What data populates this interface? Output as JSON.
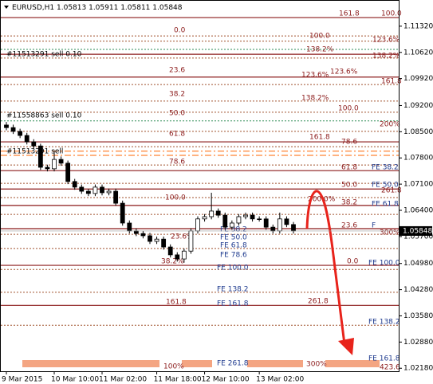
{
  "chart_data": {
    "type": "candlestick",
    "title": "EURUSD,H1",
    "header_ohlc": [
      "1.05813",
      "1.05911",
      "1.05811",
      "1.05848"
    ],
    "current_price": {
      "value": 1.05848,
      "label": "1.05848"
    },
    "x": [
      "9 Mar 2015",
      null,
      null,
      null,
      null,
      null,
      null,
      "10 Mar 10:00",
      null,
      null,
      null,
      null,
      null,
      null,
      "11 Mar 02:00",
      null,
      null,
      null,
      null,
      null,
      null,
      null,
      "11 Mar 18:00",
      null,
      null,
      null,
      null,
      null,
      null,
      "12 Mar 10:00",
      null,
      null,
      null,
      null,
      null,
      null,
      null,
      "13 Mar 02:00",
      null,
      null,
      null,
      null,
      null
    ],
    "open": [
      1.0868,
      1.0861,
      1.0851,
      1.084,
      1.0823,
      1.0812,
      1.0755,
      1.0751,
      1.0776,
      1.0766,
      1.0717,
      1.0702,
      1.0691,
      1.0685,
      1.0702,
      1.0687,
      1.0691,
      1.0659,
      1.0606,
      1.0585,
      1.0578,
      1.0572,
      1.0557,
      1.0563,
      1.0542,
      1.0521,
      1.051,
      1.0531,
      1.0585,
      1.0617,
      1.0623,
      1.0638,
      1.0627,
      1.0595,
      1.0606,
      1.0623,
      1.0627,
      1.0617,
      1.0617,
      1.0595,
      1.0585,
      1.0617,
      1.0602
    ],
    "high": [
      1.0876,
      1.0869,
      1.0858,
      1.0847,
      1.083,
      1.0818,
      1.0762,
      1.08,
      1.0784,
      1.0773,
      1.0724,
      1.0709,
      1.0697,
      1.0709,
      1.0709,
      1.0698,
      1.0698,
      1.0666,
      1.0613,
      1.0592,
      1.0585,
      1.058,
      1.057,
      1.057,
      1.0549,
      1.0528,
      1.0538,
      1.0592,
      1.0624,
      1.063,
      1.0687,
      1.0645,
      1.0634,
      1.0613,
      1.063,
      1.0634,
      1.0634,
      1.0624,
      1.0624,
      1.0602,
      1.0634,
      1.0624,
      1.0609
    ],
    "low": [
      1.0854,
      1.0844,
      1.0833,
      1.0816,
      1.0805,
      1.0748,
      1.0744,
      1.0744,
      1.0759,
      1.071,
      1.0695,
      1.0684,
      1.0678,
      1.0678,
      1.068,
      1.068,
      1.0652,
      1.0599,
      1.0578,
      1.0571,
      1.0565,
      1.055,
      1.055,
      1.0535,
      1.0514,
      1.0503,
      1.05,
      1.0524,
      1.0578,
      1.061,
      1.0616,
      1.062,
      1.0588,
      1.0588,
      1.0599,
      1.0616,
      1.061,
      1.061,
      1.0588,
      1.0578,
      1.0578,
      1.0595,
      1.0578
    ],
    "close": [
      1.0861,
      1.0851,
      1.084,
      1.0823,
      1.0812,
      1.0755,
      1.0751,
      1.0776,
      1.0766,
      1.0717,
      1.0702,
      1.0691,
      1.0685,
      1.0702,
      1.0687,
      1.0691,
      1.0659,
      1.0606,
      1.0585,
      1.0578,
      1.0572,
      1.0557,
      1.0563,
      1.0542,
      1.0521,
      1.051,
      1.0531,
      1.0585,
      1.0617,
      1.0623,
      1.0638,
      1.0627,
      1.0595,
      1.0606,
      1.0623,
      1.0627,
      1.0617,
      1.0617,
      1.0595,
      1.0585,
      1.0617,
      1.0602,
      1.0585
    ],
    "ylim": [
      1.021,
      1.1202
    ],
    "yticks": [
      {
        "value": 1.1132,
        "label": "1.11320"
      },
      {
        "value": 1.1062,
        "label": "1.10620"
      },
      {
        "value": 1.0992,
        "label": "1.09920"
      },
      {
        "value": 1.092,
        "label": "1.09200"
      },
      {
        "value": 1.085,
        "label": "1.08500"
      },
      {
        "value": 1.078,
        "label": "1.07800"
      },
      {
        "value": 1.071,
        "label": "1.07100"
      },
      {
        "value": 1.064,
        "label": "1.06400"
      },
      {
        "value": 1.057,
        "label": "1.05700"
      },
      {
        "value": 1.0498,
        "label": "1.04980"
      },
      {
        "value": 1.0428,
        "label": "1.04280"
      },
      {
        "value": 1.0358,
        "label": "1.03580"
      },
      {
        "value": 1.0288,
        "label": "1.02880"
      },
      {
        "value": 1.0218,
        "label": "1.02180"
      }
    ],
    "levels": [
      {
        "price": 1.1155,
        "color": "#8b1a1a",
        "dash": false
      },
      {
        "price": 1.1106,
        "color": "#a0522d",
        "dash": true
      },
      {
        "price": 1.1092,
        "color": "#a0522d",
        "dash": true
      },
      {
        "price": 1.107,
        "color": "#2e8b57",
        "dash": true
      },
      {
        "price": 1.1057,
        "color": "#8b1a1a",
        "dash": false
      },
      {
        "price": 1.1047,
        "color": "#a0522d",
        "dash": true
      },
      {
        "price": 1.0996,
        "color": "#8b1a1a",
        "dash": false
      },
      {
        "price": 1.0976,
        "color": "#a0522d",
        "dash": true
      },
      {
        "price": 1.0932,
        "color": "#a0522d",
        "dash": true
      },
      {
        "price": 1.0902,
        "color": "#a0522d",
        "dash": true
      },
      {
        "price": 1.0879,
        "color": "#2e8b57",
        "dash": true
      },
      {
        "price": 1.0851,
        "color": "#a0522d",
        "dash": true
      },
      {
        "price": 1.0823,
        "color": "#8b1a1a",
        "dash": false
      },
      {
        "price": 1.081,
        "color": "#a0522d",
        "dash": true
      },
      {
        "price": 1.0798,
        "color": "#ff6600",
        "dash": true
      },
      {
        "price": 1.0787,
        "color": "#ff6600",
        "dash": true
      },
      {
        "price": 1.0761,
        "color": "#a0522d",
        "dash": true
      },
      {
        "price": 1.0746,
        "color": "#8b1a1a",
        "dash": false
      },
      {
        "price": 1.0712,
        "color": "#a0522d",
        "dash": true
      },
      {
        "price": 1.0697,
        "color": "#8b1a1a",
        "dash": false
      },
      {
        "price": 1.0674,
        "color": "#a0522d",
        "dash": true
      },
      {
        "price": 1.0653,
        "color": "#8b1a1a",
        "dash": false
      },
      {
        "price": 1.0629,
        "color": "#a0522d",
        "dash": true
      },
      {
        "price": 1.0591,
        "color": "#8b1a1a",
        "dash": false
      },
      {
        "price": 1.0576,
        "color": "#a0522d",
        "dash": true
      },
      {
        "price": 1.0538,
        "color": "#a0522d",
        "dash": true
      },
      {
        "price": 1.0493,
        "color": "#8b1a1a",
        "dash": false
      },
      {
        "price": 1.0482,
        "color": "#a0522d",
        "dash": true
      },
      {
        "price": 1.0421,
        "color": "#a0522d",
        "dash": true
      },
      {
        "price": 1.0386,
        "color": "#8b1a1a",
        "dash": false
      },
      {
        "price": 1.0333,
        "color": "#a0522d",
        "dash": true
      }
    ],
    "annotations": [
      {
        "text": "161.8",
        "price": 1.1166
      },
      {
        "text": "100.0",
        "price": 1.1166
      },
      {
        "text": "0.0",
        "price": 1.1121
      },
      {
        "text": "100.0",
        "price": 1.1106
      },
      {
        "text": "123.6%",
        "price": 1.1096
      },
      {
        "text": "#11513291 sell 0.10",
        "price": 1.1057
      },
      {
        "text": "138.2%",
        "price": 1.107
      },
      {
        "text": "138.2%",
        "price": 1.1053
      },
      {
        "text": "23.6",
        "price": 1.1015
      },
      {
        "text": "123.6%",
        "price": 1.1002
      },
      {
        "text": "123.6%",
        "price": 1.101
      },
      {
        "text": "161.8",
        "price": 1.0985
      },
      {
        "text": "38.2",
        "price": 1.0951
      },
      {
        "text": "138.2%",
        "price": 1.094
      },
      {
        "text": "100.0",
        "price": 1.0913
      },
      {
        "text": "#11558863 sell 0.10",
        "price": 1.0893
      },
      {
        "text": "50.0",
        "price": 1.09
      },
      {
        "text": "200%",
        "price": 1.087
      },
      {
        "text": "61.8",
        "price": 1.0844
      },
      {
        "text": "161.8",
        "price": 1.0836
      },
      {
        "text": "78.6",
        "price": 1.0823
      },
      {
        "text": "#11513291 sell",
        "price": 1.0798
      },
      {
        "text": "78.6",
        "price": 1.077
      },
      {
        "text": "61.8",
        "price": 1.0755
      },
      {
        "text": "FE 38.2",
        "price": 1.0755
      },
      {
        "text": "50.0",
        "price": 1.0708
      },
      {
        "text": "FE 50.0",
        "price": 1.0708
      },
      {
        "text": "261.8",
        "price": 1.0693
      },
      {
        "text": "100.0",
        "price": 1.0674
      },
      {
        "text": "200.0%",
        "price": 1.067
      },
      {
        "text": "38.2",
        "price": 1.0661
      },
      {
        "text": "FE 61.8",
        "price": 1.0657
      },
      {
        "text": "23.6",
        "price": 1.06
      },
      {
        "text": "F",
        "price": 1.06
      },
      {
        "text": "300%",
        "price": 1.058
      },
      {
        "text": "FE 38.2",
        "price": 1.0589
      },
      {
        "text": "23.6%",
        "price": 1.057
      },
      {
        "text": "FE 50.0",
        "price": 1.0568
      },
      {
        "text": "FE 61.8",
        "price": 1.0546
      },
      {
        "text": "FE 78.6",
        "price": 1.0521
      },
      {
        "text": "38.2%",
        "price": 1.0504
      },
      {
        "text": "0.0",
        "price": 1.0504
      },
      {
        "text": "FE 100.0",
        "price": 1.05
      },
      {
        "text": "FE 100.0",
        "price": 1.0487
      },
      {
        "text": "FE 138.2",
        "price": 1.0429
      },
      {
        "text": "161.8",
        "price": 1.0395
      },
      {
        "text": "FE 161.8",
        "price": 1.0391
      },
      {
        "text": "261.8",
        "price": 1.0397
      },
      {
        "text": "FE 138.2",
        "price": 1.0342
      },
      {
        "text": "FE 161.8",
        "price": 1.0244
      },
      {
        "text": "423.6",
        "price": 1.0221
      },
      {
        "text": "FE 261.8",
        "price": 1.0231
      },
      {
        "text": "300%",
        "price": 1.0229
      },
      {
        "text": "100%",
        "price": 1.0223
      }
    ]
  }
}
